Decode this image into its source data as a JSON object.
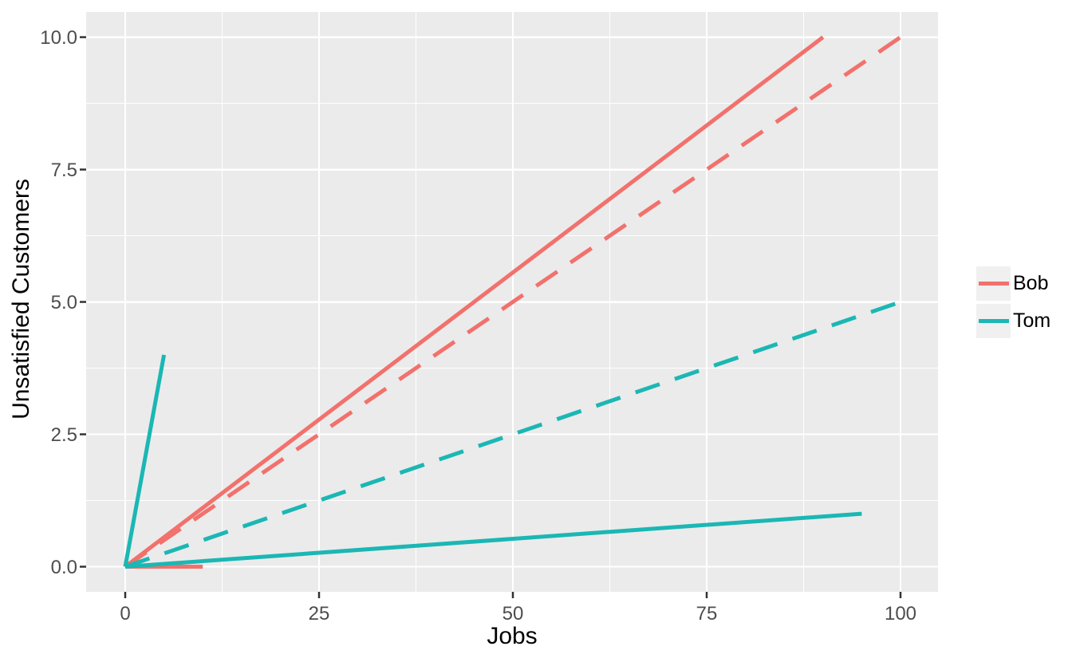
{
  "chart_data": {
    "type": "line",
    "xlabel": "Jobs",
    "ylabel": "Unsatisfied Customers",
    "x_ticks": {
      "labels": [
        "0",
        "25",
        "50",
        "75",
        "100"
      ],
      "values": [
        0,
        25,
        50,
        75,
        100
      ]
    },
    "y_ticks": {
      "labels": [
        "0.0",
        "2.5",
        "5.0",
        "7.5",
        "10.0"
      ],
      "values": [
        0,
        2.5,
        5,
        7.5,
        10
      ]
    },
    "xlim": [
      -5,
      105
    ],
    "ylim": [
      -0.5,
      10.5
    ],
    "grid": {
      "major": true,
      "minor": true,
      "gridline_color": "#FFFFFF",
      "panel_bg": "#EBEBEB"
    },
    "axis_text_color": "#4D4D4D",
    "tick_mark_color": "#333333",
    "legend": {
      "position": "right",
      "key_bg": "#F0F0F0",
      "entries": [
        {
          "name": "Bob",
          "color": "#F2716C"
        },
        {
          "name": "Tom",
          "color": "#1BB7B4"
        }
      ]
    },
    "series": [
      {
        "name": "Bob",
        "color": "#F2716C",
        "linetype": "solid",
        "points": [
          [
            0,
            0
          ],
          [
            90,
            10
          ]
        ]
      },
      {
        "name": "Bob",
        "color": "#F2716C",
        "linetype": "solid",
        "points": [
          [
            0,
            0
          ],
          [
            10,
            0
          ]
        ]
      },
      {
        "name": "Bob",
        "color": "#F2716C",
        "linetype": "dashed",
        "points": [
          [
            0,
            0
          ],
          [
            100,
            10
          ]
        ]
      },
      {
        "name": "Tom",
        "color": "#1BB7B4",
        "linetype": "dashed",
        "points": [
          [
            0,
            0
          ],
          [
            100,
            5
          ]
        ]
      },
      {
        "name": "Tom",
        "color": "#1BB7B4",
        "linetype": "solid",
        "points": [
          [
            0,
            0
          ],
          [
            95,
            1
          ]
        ]
      },
      {
        "name": "Tom",
        "color": "#1BB7B4",
        "linetype": "solid",
        "points": [
          [
            0,
            0
          ],
          [
            5,
            4
          ]
        ]
      }
    ]
  }
}
